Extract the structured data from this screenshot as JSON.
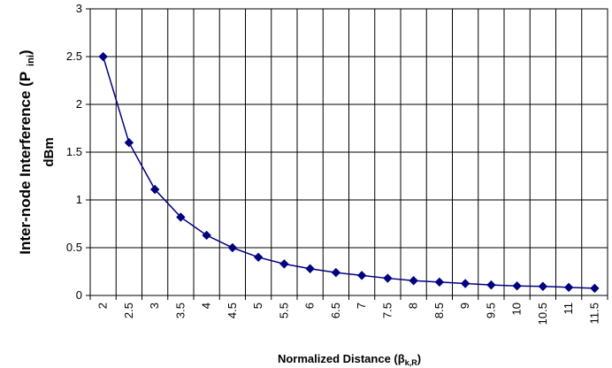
{
  "chart_data": {
    "type": "line",
    "title": "",
    "xlabel": "Normalized Distance (β",
    "xlabel_sub": "k,R",
    "xlabel_close": ")",
    "ylabel_line1": "Inter-node Interference (P",
    "ylabel_sub": "ini",
    "ylabel_close": ")",
    "ylabel_line2": "dBm",
    "x_tick_labels": [
      "2",
      "2.5",
      "3",
      "3.5",
      "4",
      "4.5",
      "5",
      "5.5",
      "6",
      "6.5",
      "7",
      "7.5",
      "8",
      "8.5",
      "9",
      "9.5",
      "10",
      "10.5",
      "11",
      "11.5"
    ],
    "y_tick_labels": [
      "0",
      "0.5",
      "1",
      "1.5",
      "2",
      "2.5",
      "3"
    ],
    "ylim": [
      0,
      3
    ],
    "grid": true,
    "series": [
      {
        "color": "#000080",
        "marker": "diamond",
        "x": [
          2,
          2.5,
          3,
          3.5,
          4,
          4.5,
          5,
          5.5,
          6,
          6.5,
          7,
          7.5,
          8,
          8.5,
          9,
          9.5,
          10,
          10.5,
          11,
          11.5
        ],
        "y": [
          2.5,
          1.6,
          1.11,
          0.82,
          0.63,
          0.5,
          0.4,
          0.33,
          0.28,
          0.24,
          0.21,
          0.18,
          0.155,
          0.14,
          0.125,
          0.11,
          0.1,
          0.095,
          0.085,
          0.075
        ]
      }
    ]
  }
}
